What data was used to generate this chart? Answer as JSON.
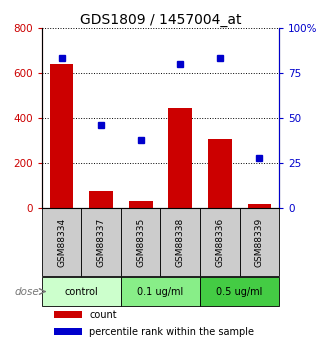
{
  "title": "GDS1809 / 1457004_at",
  "categories": [
    "GSM88334",
    "GSM88337",
    "GSM88335",
    "GSM88338",
    "GSM88336",
    "GSM88339"
  ],
  "bar_values": [
    640,
    75,
    30,
    445,
    305,
    20
  ],
  "scatter_values": [
    83,
    46,
    38,
    80,
    83,
    28
  ],
  "bar_color": "#cc0000",
  "scatter_color": "#0000cc",
  "left_ylim": [
    0,
    800
  ],
  "right_ylim": [
    0,
    100
  ],
  "left_yticks": [
    0,
    200,
    400,
    600,
    800
  ],
  "right_yticks": [
    0,
    25,
    50,
    75,
    100
  ],
  "right_yticklabels": [
    "0",
    "25",
    "50",
    "75",
    "100%"
  ],
  "groups": [
    {
      "label": "control",
      "indices": [
        0,
        1
      ],
      "color": "#ccffcc"
    },
    {
      "label": "0.1 ug/ml",
      "indices": [
        2,
        3
      ],
      "color": "#88ee88"
    },
    {
      "label": "0.5 ug/ml",
      "indices": [
        4,
        5
      ],
      "color": "#44cc44"
    }
  ],
  "dose_label": "dose",
  "legend_items": [
    {
      "label": "count",
      "color": "#cc0000"
    },
    {
      "label": "percentile rank within the sample",
      "color": "#0000cc"
    }
  ],
  "left_tick_color": "#cc0000",
  "right_tick_color": "#0000cc",
  "bar_width": 0.6,
  "sample_box_color": "#cccccc",
  "xlim": [
    -0.5,
    5.5
  ]
}
